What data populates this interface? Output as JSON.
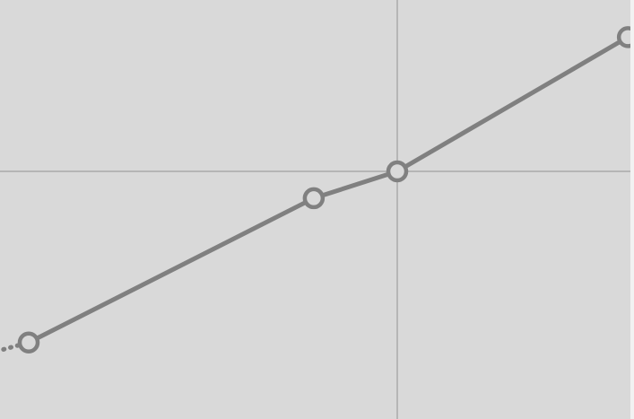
{
  "canvas": {
    "background": "#d9d9d9",
    "axis_color": "#a0a0a0",
    "curve_color": "#808080",
    "marker_fill": "#d9d9d9"
  },
  "curve": {
    "points": [
      {
        "x": -0.2,
        "y": -0.57
      },
      {
        "x": 0.0,
        "y": -0.51
      },
      {
        "x": 0.7734,
        "y": -0.08
      },
      {
        "x": 1.0,
        "y": 0.0
      },
      {
        "x": 1.6257,
        "y": 0.4
      },
      {
        "x": 1.75,
        "y": 0.48
      }
    ],
    "markers": [
      0.0,
      0.7734,
      1.0,
      1.6257
    ],
    "leading_segment_style": "dotted"
  }
}
